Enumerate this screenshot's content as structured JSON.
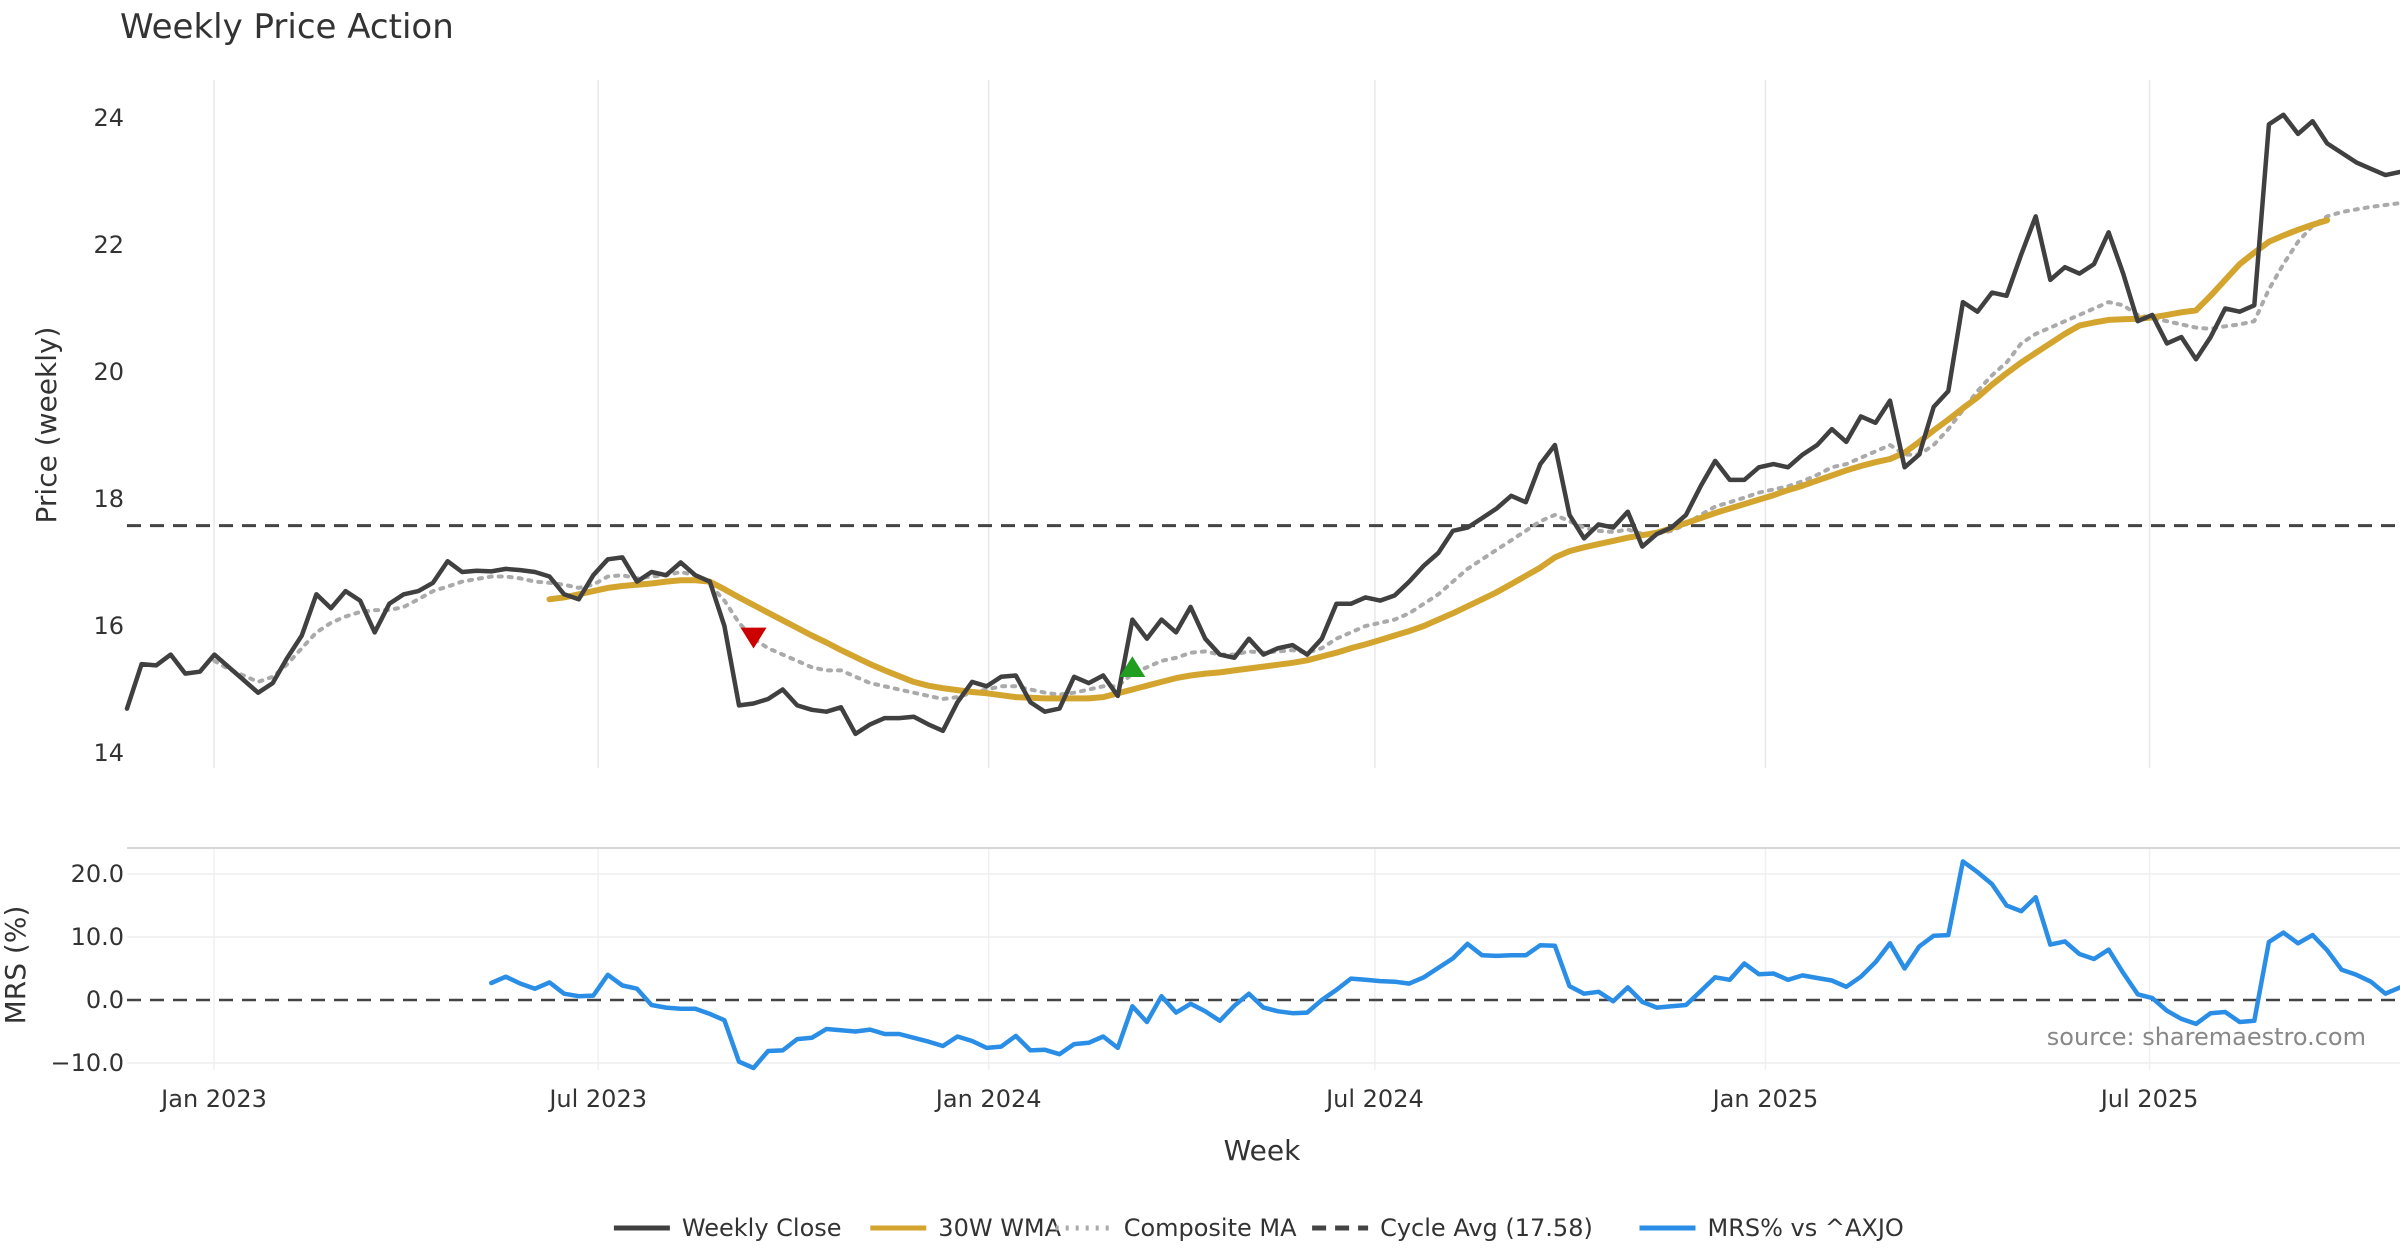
{
  "chart_data": {
    "type": "line",
    "title": "Weekly Price Action",
    "xlabel": "Week",
    "x_ticks": [
      "Jan 2023",
      "Jul 2023",
      "Jan 2024",
      "Jul 2024",
      "Jan 2025",
      "Jul 2025"
    ],
    "x_range": [
      "2022-11-21",
      "2025-10-27"
    ],
    "grid": true,
    "legend_position": "bottom-center",
    "source": "source: sharemaestro.com",
    "cycle_avg": 17.58,
    "price_panel": {
      "ylabel": "Price (weekly)",
      "ylim": [
        13.8,
        24.6
      ],
      "y_ticks": [
        14,
        16,
        18,
        20,
        22,
        24
      ],
      "series": [
        {
          "name": "Weekly Close",
          "color": "#404040",
          "style": "solid",
          "values": [
            14.7,
            15.4,
            15.38,
            15.55,
            15.25,
            15.28,
            15.55,
            15.35,
            15.15,
            14.95,
            15.1,
            15.5,
            15.85,
            16.5,
            16.28,
            16.55,
            16.4,
            15.9,
            16.35,
            16.5,
            16.55,
            16.68,
            17.02,
            16.85,
            16.87,
            16.86,
            16.9,
            16.88,
            16.85,
            16.78,
            16.5,
            16.42,
            16.8,
            17.05,
            17.08,
            16.7,
            16.85,
            16.8,
            17.0,
            16.8,
            16.7,
            16.0,
            14.75,
            14.78,
            14.85,
            15.0,
            14.75,
            14.68,
            14.65,
            14.72,
            14.3,
            14.45,
            14.55,
            14.55,
            14.57,
            14.45,
            14.35,
            14.8,
            15.12,
            15.05,
            15.2,
            15.22,
            14.8,
            14.65,
            14.7,
            15.2,
            15.1,
            15.22,
            14.9,
            16.1,
            15.8,
            16.1,
            15.9,
            16.3,
            15.8,
            15.55,
            15.5,
            15.8,
            15.55,
            15.65,
            15.7,
            15.55,
            15.8,
            16.35,
            16.35,
            16.45,
            16.4,
            16.48,
            16.7,
            16.95,
            17.15,
            17.5,
            17.55,
            17.7,
            17.85,
            18.05,
            17.95,
            18.55,
            18.85,
            17.75,
            17.38,
            17.6,
            17.55,
            17.8,
            17.25,
            17.45,
            17.55,
            17.75,
            18.2,
            18.6,
            18.3,
            18.3,
            18.5,
            18.55,
            18.5,
            18.7,
            18.85,
            19.1,
            18.9,
            19.3,
            19.2,
            19.55,
            18.5,
            18.7,
            19.45,
            19.7,
            21.1,
            20.95,
            21.25,
            21.2,
            21.85,
            22.45,
            21.45,
            21.65,
            21.55,
            21.7,
            22.2,
            21.55,
            20.8,
            20.9,
            20.45,
            20.55,
            20.2,
            20.55,
            21.0,
            20.95,
            21.05,
            23.9,
            24.05,
            23.75,
            23.95,
            23.6,
            23.45,
            23.3,
            23.2,
            23.1,
            23.15
          ]
        },
        {
          "name": "30W WMA",
          "color": "#d4a52e",
          "style": "solid",
          "values": [
            null,
            null,
            null,
            null,
            null,
            null,
            null,
            null,
            null,
            null,
            null,
            null,
            null,
            null,
            null,
            null,
            null,
            null,
            null,
            null,
            null,
            null,
            null,
            null,
            null,
            null,
            null,
            null,
            null,
            16.42,
            16.45,
            16.5,
            16.55,
            16.6,
            16.63,
            16.65,
            16.67,
            16.7,
            16.72,
            16.72,
            16.7,
            16.58,
            16.45,
            16.33,
            16.21,
            16.09,
            15.97,
            15.85,
            15.74,
            15.62,
            15.51,
            15.4,
            15.3,
            15.21,
            15.12,
            15.06,
            15.02,
            14.99,
            14.96,
            14.94,
            14.91,
            14.88,
            14.87,
            14.86,
            14.86,
            14.86,
            14.86,
            14.88,
            14.94,
            15.0,
            15.06,
            15.12,
            15.18,
            15.22,
            15.25,
            15.27,
            15.3,
            15.33,
            15.36,
            15.39,
            15.42,
            15.46,
            15.52,
            15.58,
            15.65,
            15.71,
            15.78,
            15.85,
            15.92,
            16.0,
            16.1,
            16.2,
            16.31,
            16.42,
            16.53,
            16.66,
            16.79,
            16.92,
            17.08,
            17.18,
            17.24,
            17.29,
            17.34,
            17.39,
            17.43,
            17.47,
            17.54,
            17.62,
            17.7,
            17.78,
            17.85,
            17.92,
            17.99,
            18.06,
            18.14,
            18.21,
            18.29,
            18.37,
            18.45,
            18.52,
            18.58,
            18.63,
            18.73,
            18.9,
            19.08,
            19.25,
            19.43,
            19.6,
            19.8,
            19.98,
            20.15,
            20.3,
            20.45,
            20.6,
            20.73,
            20.78,
            20.82,
            20.83,
            20.84,
            20.86,
            20.9,
            20.94,
            20.97,
            21.2,
            21.45,
            21.7,
            21.88,
            22.05,
            22.15,
            22.24,
            22.32,
            22.39
          ]
        },
        {
          "name": "Composite MA",
          "color": "#aaaaaa",
          "style": "dotted",
          "values": [
            null,
            null,
            null,
            null,
            null,
            null,
            15.45,
            15.32,
            15.22,
            15.12,
            15.2,
            15.4,
            15.65,
            15.9,
            16.05,
            16.15,
            16.22,
            16.25,
            16.25,
            16.3,
            16.42,
            16.55,
            16.62,
            16.7,
            16.74,
            16.78,
            16.78,
            16.75,
            16.7,
            16.68,
            16.65,
            16.6,
            16.65,
            16.78,
            16.8,
            16.75,
            16.78,
            16.8,
            16.85,
            16.8,
            16.65,
            16.4,
            16.05,
            15.8,
            15.65,
            15.55,
            15.45,
            15.35,
            15.3,
            15.3,
            15.2,
            15.1,
            15.05,
            15.0,
            14.95,
            14.9,
            14.85,
            14.88,
            14.95,
            15.0,
            15.05,
            15.05,
            15.0,
            14.95,
            14.92,
            14.95,
            15.0,
            15.05,
            15.05,
            15.25,
            15.35,
            15.45,
            15.5,
            15.58,
            15.6,
            15.55,
            15.55,
            15.6,
            15.58,
            15.6,
            15.62,
            15.58,
            15.65,
            15.8,
            15.9,
            16.0,
            16.05,
            16.1,
            16.2,
            16.35,
            16.5,
            16.7,
            16.9,
            17.05,
            17.2,
            17.35,
            17.5,
            17.65,
            17.75,
            17.65,
            17.55,
            17.5,
            17.48,
            17.52,
            17.45,
            17.45,
            17.5,
            17.6,
            17.75,
            17.88,
            17.95,
            18.02,
            18.1,
            18.15,
            18.2,
            18.28,
            18.38,
            18.5,
            18.55,
            18.65,
            18.75,
            18.85,
            18.7,
            18.7,
            18.85,
            19.1,
            19.4,
            19.7,
            19.95,
            20.15,
            20.45,
            20.6,
            20.7,
            20.8,
            20.9,
            21.0,
            21.1,
            21.05,
            20.9,
            20.85,
            20.8,
            20.75,
            20.7,
            20.68,
            20.72,
            20.75,
            20.8,
            21.3,
            21.7,
            22.05,
            22.3,
            22.45,
            22.52,
            22.56,
            22.6,
            22.63,
            22.66
          ]
        },
        {
          "name": "Cycle Avg (17.58)",
          "color": "#444444",
          "style": "dashed",
          "values": [
            17.58
          ]
        }
      ],
      "markers": [
        {
          "type": "sell",
          "x_index": 43,
          "y": 15.82,
          "color": "#cc0000",
          "shape": "triangle-down"
        },
        {
          "type": "buy",
          "x_index": 69,
          "y": 15.35,
          "color": "#1f9e1f",
          "shape": "triangle-up"
        }
      ]
    },
    "mrs_panel": {
      "ylabel": "MRS (%)",
      "ylim": [
        -11,
        23
      ],
      "y_ticks": [
        20.0,
        10.0,
        0.0,
        -10.0
      ],
      "y_tick_labels": [
        "20.0",
        "10.0",
        "0.0",
        "−10.0"
      ],
      "series": [
        {
          "name": "MRS% vs ^AXJO",
          "color": "#2a8ee6",
          "style": "solid",
          "values": [
            null,
            null,
            null,
            null,
            null,
            null,
            null,
            null,
            null,
            null,
            null,
            null,
            null,
            null,
            null,
            null,
            null,
            null,
            null,
            null,
            null,
            null,
            null,
            null,
            null,
            2.7,
            3.7,
            2.6,
            1.8,
            2.8,
            1.0,
            0.6,
            0.7,
            4.0,
            2.3,
            1.8,
            -0.8,
            -1.2,
            -1.4,
            -1.4,
            -2.2,
            -3.2,
            -9.8,
            -10.8,
            -8.1,
            -8.0,
            -6.2,
            -6.0,
            -4.6,
            -4.8,
            -5.0,
            -4.7,
            -5.4,
            -5.4,
            -6.0,
            -6.6,
            -7.3,
            -5.8,
            -6.5,
            -7.6,
            -7.4,
            -5.7,
            -8.0,
            -7.9,
            -8.6,
            -7.0,
            -6.8,
            -5.8,
            -7.6,
            -1.0,
            -3.5,
            0.6,
            -2.0,
            -0.6,
            -1.8,
            -3.3,
            -0.9,
            1.0,
            -1.2,
            -1.8,
            -2.1,
            -2.0,
            0.0,
            1.6,
            3.4,
            3.2,
            3.0,
            2.9,
            2.6,
            3.6,
            5.1,
            6.6,
            8.9,
            7.1,
            7.0,
            7.1,
            7.1,
            8.7,
            8.6,
            2.2,
            1.0,
            1.3,
            -0.2,
            2.0,
            -0.3,
            -1.2,
            -1.0,
            -0.8,
            1.4,
            3.6,
            3.2,
            5.8,
            4.1,
            4.2,
            3.2,
            3.9,
            3.5,
            3.1,
            2.1,
            3.7,
            6.0,
            9.0,
            5.0,
            8.5,
            10.2,
            10.3,
            22.0,
            20.3,
            18.4,
            15.0,
            14.1,
            16.3,
            8.8,
            9.3,
            7.3,
            6.5,
            8.0,
            4.3,
            0.9,
            0.3,
            -1.7,
            -3.0,
            -3.8,
            -2.1,
            -1.9,
            -3.5,
            -3.3,
            9.2,
            10.7,
            9.0,
            10.3,
            7.9,
            4.8,
            4.0,
            2.9,
            1.0,
            2.0
          ]
        }
      ]
    },
    "legend": [
      {
        "name": "Weekly Close",
        "color": "#404040",
        "style": "solid"
      },
      {
        "name": "30W WMA",
        "color": "#d4a52e",
        "style": "solid"
      },
      {
        "name": "Composite MA",
        "color": "#aaaaaa",
        "style": "dotted"
      },
      {
        "name": "Cycle Avg (17.58)",
        "color": "#444444",
        "style": "dashed"
      },
      {
        "name": "MRS% vs ^AXJO",
        "color": "#2a8ee6",
        "style": "solid"
      }
    ]
  }
}
